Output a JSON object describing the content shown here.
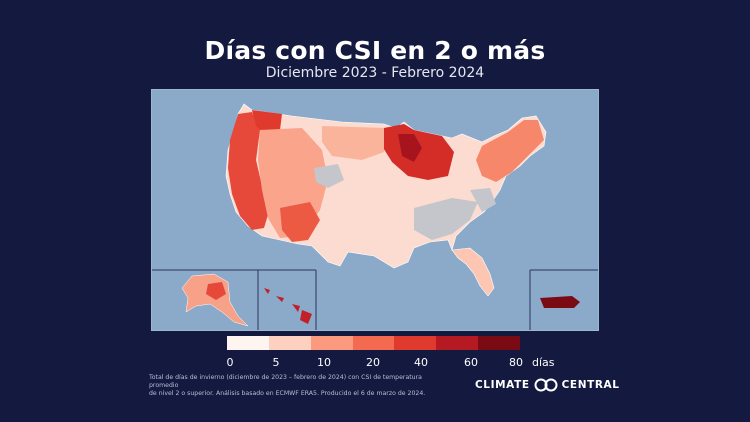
{
  "title": "Días con CSI en 2 o más",
  "subtitle": "Diciembre 2023 - Febrero 2024",
  "legend": {
    "labels": [
      "0",
      "5",
      "10",
      "20",
      "40",
      "60",
      "80"
    ],
    "unit": "días",
    "colors": [
      "#fff5f0",
      "#fdd0c0",
      "#fb9a7e",
      "#f36a50",
      "#e03a2f",
      "#b51a22",
      "#7a0a14"
    ]
  },
  "colors": {
    "background": "#13193f",
    "ocean": "#8ba9c9",
    "no_data": "#c4c6cc"
  },
  "footnote": {
    "line1": "Total de días de invierno (diciembre de 2023 – febrero de 2024) con CSI de temperatura promedio",
    "line2": "de nivel 2 o superior. Análisis basado en ECMWF ERA5. Producido el 6 de marzo de 2024."
  },
  "logo": {
    "left": "CLIMATE",
    "right": "CENTRAL"
  }
}
